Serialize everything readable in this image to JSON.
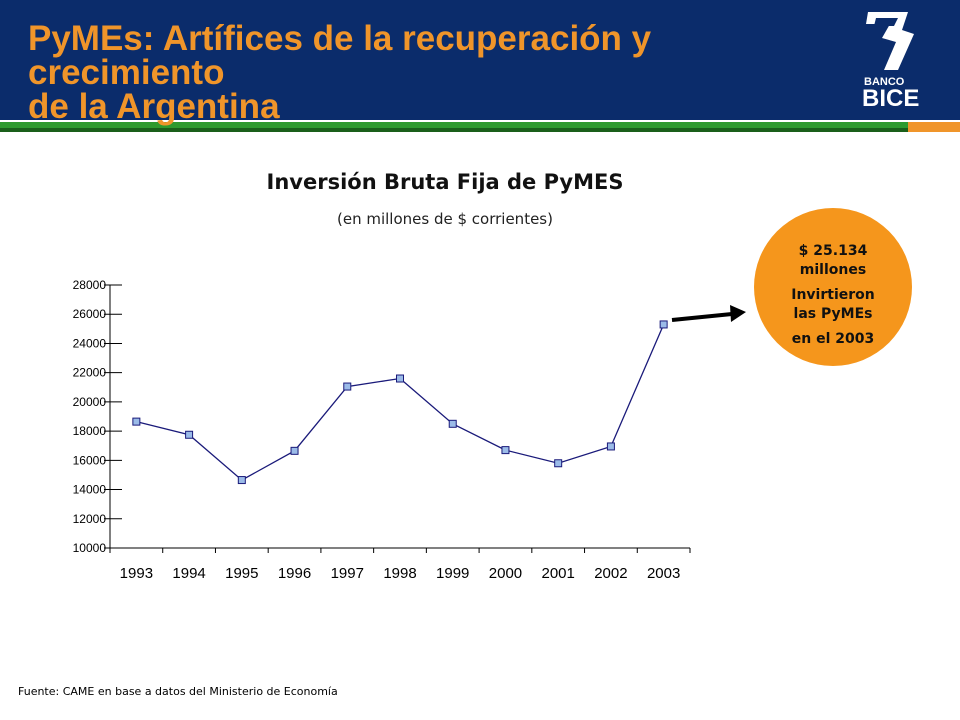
{
  "header": {
    "title_line1": "PyMEs: Artífices de la recuperación y crecimiento",
    "title_line2": "de la Argentina",
    "logo_line1": "BANCO",
    "logo_line2": "BICE"
  },
  "colors": {
    "header_bg": "#0b2c6b",
    "title": "#f0952a",
    "accent_green": "#2e9a2e",
    "callout": "#f5961c",
    "series_line": "#1a1a7a",
    "marker_fill": "#9bbbe8"
  },
  "callout": {
    "amount": "$ 25.134",
    "unit": "millones",
    "line3": "Invirtieron",
    "line4": "las PyMEs",
    "line5": "en el 2003"
  },
  "source": "Fuente: CAME en base a datos del Ministerio  de Economía",
  "chart_data": {
    "type": "line",
    "title": "Inversión Bruta Fija de PyMES",
    "subtitle": "(en millones de $ corrientes)",
    "xlabel": "",
    "ylabel": "",
    "categories": [
      "1993",
      "1994",
      "1995",
      "1996",
      "1997",
      "1998",
      "1999",
      "2000",
      "2001",
      "2002",
      "2003"
    ],
    "yticks": [
      "10000",
      "12000",
      "14000",
      "16000",
      "18000",
      "20000",
      "22000",
      "24000",
      "26000",
      "28000"
    ],
    "ylim": [
      10000,
      28000
    ],
    "grid": false,
    "legend": "none",
    "series": [
      {
        "values": [
          18650,
          17750,
          14650,
          16650,
          21050,
          21600,
          18500,
          16700,
          15800,
          16950,
          25300
        ]
      }
    ]
  }
}
